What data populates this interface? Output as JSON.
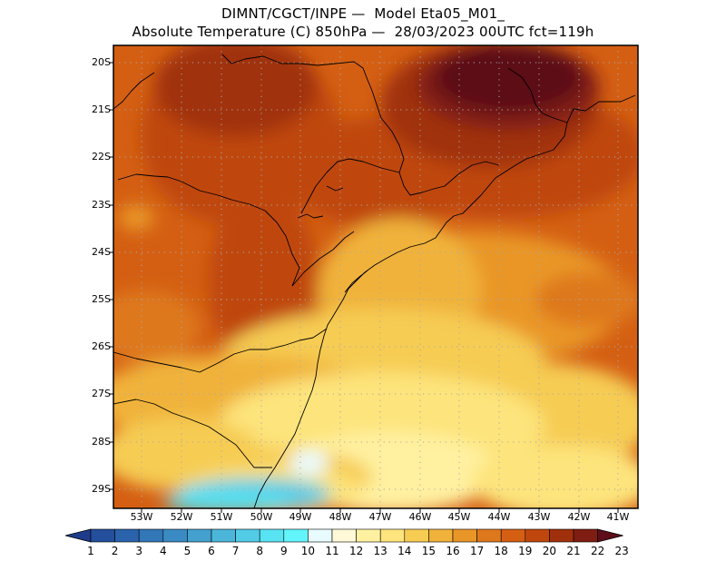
{
  "header": {
    "line1": "DIMNT/CGCT/INPE —  Model Eta05_M01_",
    "line2": "Absolute Temperature (C) 850hPa —  28/03/2023 00UTC fct=119h"
  },
  "map": {
    "lat_labels": [
      "20S",
      "21S",
      "22S",
      "23S",
      "24S",
      "25S",
      "26S",
      "27S",
      "28S",
      "29S"
    ],
    "lon_labels": [
      "53W",
      "52W",
      "51W",
      "50W",
      "49W",
      "48W",
      "47W",
      "46W",
      "45W",
      "44W",
      "43W",
      "42W",
      "41W"
    ],
    "grid": "dotted",
    "lat_range": [
      -29.4,
      -19.8
    ],
    "lon_range": [
      -53.8,
      -40.6
    ]
  },
  "colorbar": {
    "labels": [
      "1",
      "2",
      "3",
      "4",
      "5",
      "6",
      "7",
      "8",
      "9",
      "10",
      "11",
      "12",
      "13",
      "14",
      "15",
      "16",
      "17",
      "18",
      "19",
      "20",
      "21",
      "22",
      "23"
    ],
    "colors": [
      "#1f3c8a",
      "#234f9c",
      "#2a63ac",
      "#3277b8",
      "#3a8bc3",
      "#43a0cf",
      "#4cb6da",
      "#52cbe6",
      "#58e3f2",
      "#62f5fb",
      "#e8fbff",
      "#fff9d8",
      "#fff1a0",
      "#fde47c",
      "#f6cc52",
      "#f0b23a",
      "#e99628",
      "#de781c",
      "#d45f13",
      "#bf470d",
      "#a0300b",
      "#7f1d12",
      "#5c0d18"
    ]
  }
}
